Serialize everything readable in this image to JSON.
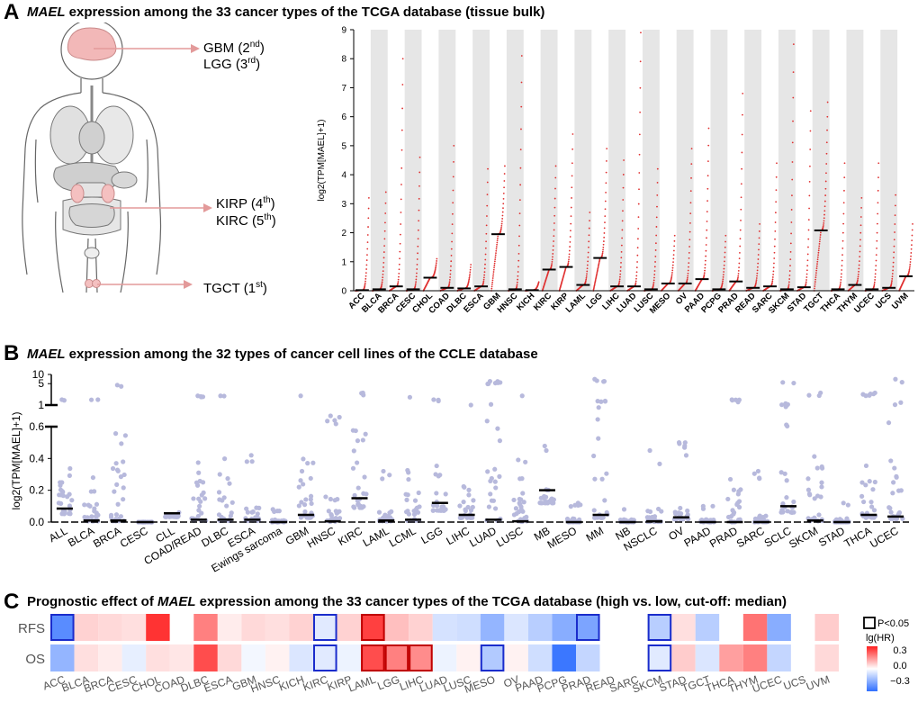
{
  "panelA": {
    "letter": "A",
    "title_gene": "MAEL",
    "title_rest": " expression among the 33 cancer types of the TCGA database (tissue bulk)",
    "annotations": [
      {
        "name": "GBM",
        "rank": "2",
        "suffix": "nd"
      },
      {
        "name": "LGG",
        "rank": "3",
        "suffix": "rd"
      },
      {
        "name": "KIRP",
        "rank": "4",
        "suffix": "th"
      },
      {
        "name": "KIRC",
        "rank": "5",
        "suffix": "th"
      },
      {
        "name": "TGCT",
        "rank": "1",
        "suffix": "st"
      }
    ]
  },
  "panelB": {
    "letter": "B",
    "title_gene": "MAEL",
    "title_rest": " expression among the 32 types of cancer cell lines of the CCLE database"
  },
  "panelC": {
    "letter": "C",
    "title_prefix": "Prognostic effect of ",
    "title_gene": "MAEL",
    "title_rest": " expression among the 33 cancer types of the TCGA database (high vs. low, cut-off: median)"
  },
  "chart_data": [
    {
      "id": "tcga_expression",
      "type": "scatter",
      "title": "MAEL expression among the 33 cancer types of the TCGA database (tissue bulk)",
      "ylabel": "log2(TPM[MAEL]+1)",
      "ylim": [
        0,
        9
      ],
      "yticks": [
        "0",
        "1",
        "2",
        "3",
        "4",
        "5",
        "6",
        "7",
        "8",
        "9"
      ],
      "point_color": "#e03030",
      "categories": [
        "ACC",
        "BLCA",
        "BRCA",
        "CESC",
        "CHOL",
        "COAD",
        "DLBC",
        "ESCA",
        "GBM",
        "HNSC",
        "KICH",
        "KIRC",
        "KIRP",
        "LAML",
        "LGG",
        "LIHC",
        "LUAD",
        "LUSC",
        "MESO",
        "OV",
        "PAAD",
        "PCPG",
        "PRAD",
        "READ",
        "SARC",
        "SKCM",
        "STAD",
        "TGCT",
        "THCA",
        "THYM",
        "UCEC",
        "UCS",
        "UVM"
      ],
      "medians": [
        0.02,
        0.05,
        0.15,
        0.05,
        0.45,
        0.1,
        0.08,
        0.15,
        1.95,
        0.05,
        0.02,
        0.73,
        0.82,
        0.2,
        1.13,
        0.15,
        0.15,
        0.05,
        0.25,
        0.25,
        0.4,
        0.05,
        0.32,
        0.1,
        0.15,
        0.05,
        0.12,
        2.08,
        0.05,
        0.2,
        0.05,
        0.1,
        0.5
      ],
      "max_values": [
        3.2,
        3.4,
        8.0,
        4.6,
        1.1,
        5.0,
        0.9,
        4.2,
        4.3,
        8.1,
        0.3,
        4.3,
        5.4,
        2.7,
        4.9,
        4.5,
        8.9,
        4.2,
        1.9,
        4.9,
        5.6,
        1.9,
        6.8,
        2.3,
        4.4,
        8.5,
        6.2,
        6.5,
        4.4,
        3.2,
        4.4,
        3.3,
        2.3
      ]
    },
    {
      "id": "ccle_expression",
      "type": "scatter",
      "title": "MAEL expression among the 32 types of cancer cell lines of the CCLE database",
      "ylabel": "log2(TPM[MAEL]+1)",
      "y_axis_break": "0.6 to 1 compressed",
      "ytick_labels": [
        "0.0",
        "0.2",
        "0.4",
        "0.6",
        "1",
        "5",
        "10"
      ],
      "point_color": "#b7b9dc",
      "categories": [
        "ALL",
        "BLCA",
        "BRCA",
        "CESC",
        "CLL",
        "COAD/READ",
        "DLBC",
        "ESCA",
        "Ewings sarcoma",
        "GBM",
        "HNSC",
        "KIRC",
        "LAML",
        "LCML",
        "LGG",
        "LIHC",
        "LUAD",
        "LUSC",
        "MB",
        "MESO",
        "MM",
        "NB",
        "NSCLC",
        "OV",
        "PAAD",
        "PRAD",
        "SARC",
        "SCLC",
        "SKCM",
        "STAD",
        "THCA",
        "UCEC"
      ],
      "medians": [
        0.085,
        0.01,
        0.01,
        0.0,
        0.055,
        0.015,
        0.015,
        0.015,
        0.0,
        0.045,
        0.005,
        0.15,
        0.01,
        0.015,
        0.12,
        0.045,
        0.015,
        0.005,
        0.2,
        0.0,
        0.045,
        0.0,
        0.005,
        0.03,
        0.0,
        0.0,
        0.0,
        0.1,
        0.01,
        0.0,
        0.045,
        0.035
      ],
      "max_values": [
        1.5,
        1.5,
        4.5,
        0.0,
        0.06,
        2.0,
        2.0,
        0.42,
        0.08,
        2.0,
        0.8,
        2.5,
        0.32,
        1.8,
        1.5,
        1.0,
        6.0,
        2.0,
        0.45,
        0.12,
        7.0,
        0.08,
        0.45,
        0.5,
        0.1,
        1.5,
        0.32,
        5.5,
        2.5,
        0.12,
        2.5,
        7.0
      ]
    },
    {
      "id": "prognostic_heatmap",
      "type": "heatmap",
      "title": "Prognostic effect of MAEL expression among the 33 cancer types of the TCGA database (high vs. low, cut-off: median)",
      "rows": [
        "RFS",
        "OS"
      ],
      "columns": [
        "ACC",
        "BLCA",
        "BRCA",
        "CESC",
        "CHOL",
        "COAD",
        "DLBC",
        "ESCA",
        "GBM",
        "HNSC",
        "KICH",
        "KIRC",
        "KIRP",
        "LAML",
        "LGG",
        "LIHC",
        "LUAD",
        "LUSC",
        "MESO",
        "OV",
        "PAAD",
        "PCPG",
        "PRAD",
        "READ",
        "SARC",
        "SKCM",
        "STAD",
        "TGCT",
        "THCA",
        "THYM",
        "UCEC",
        "UCS",
        "UVM"
      ],
      "values": [
        [
          -0.28,
          0.07,
          0.06,
          0.05,
          0.32,
          0.0,
          0.2,
          0.03,
          0.06,
          0.05,
          0.07,
          -0.05,
          0.07,
          0.3,
          0.1,
          0.07,
          -0.07,
          -0.08,
          -0.18,
          -0.06,
          -0.12,
          -0.2,
          -0.22,
          0.0,
          0.0,
          -0.12,
          0.05,
          -0.12,
          0.0,
          0.22,
          -0.2,
          0.0,
          0.08
        ],
        [
          -0.18,
          0.05,
          0.03,
          -0.04,
          0.05,
          0.04,
          0.28,
          0.06,
          -0.02,
          0.02,
          -0.06,
          -0.05,
          -0.03,
          0.28,
          0.2,
          0.18,
          -0.03,
          0.02,
          -0.13,
          0.02,
          -0.08,
          -0.33,
          -0.1,
          0.0,
          0.0,
          -0.05,
          0.08,
          -0.06,
          0.15,
          0.2,
          -0.1,
          0.0,
          0.06
        ]
      ],
      "significant": [
        [
          1,
          0,
          0,
          0,
          0,
          0,
          0,
          0,
          0,
          0,
          0,
          1,
          0,
          1,
          0,
          0,
          0,
          0,
          0,
          0,
          0,
          0,
          1,
          0,
          0,
          1,
          0,
          0,
          0,
          0,
          0,
          0,
          0
        ],
        [
          0,
          0,
          0,
          0,
          0,
          0,
          0,
          0,
          0,
          0,
          0,
          1,
          0,
          1,
          1,
          1,
          0,
          0,
          1,
          0,
          0,
          0,
          0,
          0,
          0,
          1,
          0,
          0,
          0,
          0,
          0,
          0,
          0
        ]
      ],
      "legend_box_label": "P<0.05",
      "colorbar_label": "lg(HR)",
      "colorbar_ticks": [
        0.3,
        0.0,
        -0.3
      ],
      "colorbar_tick_labels": [
        "0.3",
        "0.0",
        "−0.3"
      ],
      "colors": {
        "low": "#2f6fff",
        "mid": "#ffffff",
        "high": "#ff2020"
      }
    }
  ]
}
